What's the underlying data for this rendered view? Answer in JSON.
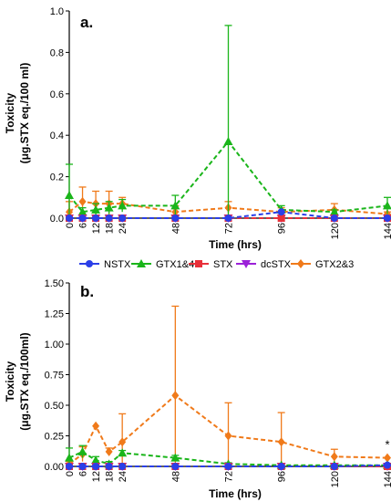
{
  "colors": {
    "NSTX": "#2b3fe8",
    "GTX1&4": "#1ab51a",
    "STX": "#e8303a",
    "dcSTX": "#9b21d8",
    "GTX2&3": "#f07a1a"
  },
  "legend": {
    "position": "between-panels",
    "items": [
      {
        "name": "NSTX",
        "marker": "circle"
      },
      {
        "name": "GTX1&4",
        "marker": "triangle-up"
      },
      {
        "name": "STX",
        "marker": "square"
      },
      {
        "name": "dcSTX",
        "marker": "triangle-down"
      },
      {
        "name": "GTX2&3",
        "marker": "diamond"
      }
    ]
  },
  "chart_data": [
    {
      "type": "line",
      "panel_label": "a.",
      "xlabel": "Time (hrs)",
      "ylabel_line1": "Toxicity",
      "ylabel_line2": "(μg.STX eq./100 ml)",
      "x": [
        0,
        6,
        12,
        18,
        24,
        48,
        72,
        96,
        120,
        144
      ],
      "x_ticks": [
        "0",
        "6",
        "12",
        "18",
        "24",
        "48",
        "72",
        "96",
        "120",
        "144"
      ],
      "ylim": [
        0,
        1.0
      ],
      "y_ticks": [
        "0.0",
        "0.2",
        "0.4",
        "0.6",
        "0.8",
        "1.0"
      ],
      "y_tick_values": [
        0,
        0.2,
        0.4,
        0.6,
        0.8,
        1.0
      ],
      "grid": false,
      "series": [
        {
          "name": "NSTX",
          "values": [
            0.0,
            0.0,
            0.0,
            0.0,
            0.0,
            0.0,
            0.0,
            0.03,
            0.0,
            0.0
          ],
          "errors": [
            0.0,
            0.0,
            0.0,
            0.0,
            0.0,
            0.0,
            0.0,
            0.0,
            0.0,
            0.0
          ]
        },
        {
          "name": "GTX1&4",
          "values": [
            0.11,
            0.03,
            0.04,
            0.05,
            0.06,
            0.06,
            0.37,
            0.04,
            0.03,
            0.06
          ],
          "errors": [
            0.15,
            0.02,
            0.03,
            0.03,
            0.03,
            0.05,
            0.56,
            0.02,
            0.01,
            0.04
          ]
        },
        {
          "name": "STX",
          "values": [
            0.0,
            0.0,
            0.0,
            0.0,
            0.0,
            0.0,
            0.0,
            0.0,
            0.0,
            0.0
          ],
          "errors": [
            0.0,
            0.0,
            0.0,
            0.0,
            0.0,
            0.0,
            0.0,
            0.0,
            0.0,
            0.0
          ]
        },
        {
          "name": "dcSTX",
          "values": [
            0.0,
            0.0,
            0.0,
            0.0,
            0.0,
            0.0,
            0.0,
            0.0,
            0.0,
            0.0
          ],
          "errors": [
            0.0,
            0.0,
            0.0,
            0.0,
            0.0,
            0.0,
            0.0,
            0.0,
            0.0,
            0.0
          ]
        },
        {
          "name": "GTX2&3",
          "values": [
            0.03,
            0.08,
            0.07,
            0.07,
            0.07,
            0.03,
            0.05,
            0.03,
            0.04,
            0.02
          ],
          "errors": [
            0.05,
            0.07,
            0.06,
            0.06,
            0.03,
            0.03,
            0.03,
            0.02,
            0.03,
            0.01
          ]
        }
      ]
    },
    {
      "type": "line",
      "panel_label": "b.",
      "xlabel": "Time (hrs)",
      "ylabel_line1": "Toxicity",
      "ylabel_line2": "(μg.STX eq./100ml)",
      "x": [
        0,
        6,
        12,
        18,
        24,
        48,
        72,
        96,
        120,
        144
      ],
      "x_ticks": [
        "0",
        "6",
        "12",
        "18",
        "24",
        "48",
        "72",
        "96",
        "120",
        "144"
      ],
      "ylim": [
        0,
        1.5
      ],
      "y_ticks": [
        "0.00",
        "0.25",
        "0.50",
        "0.75",
        "1.00",
        "1.25",
        "1.50"
      ],
      "y_tick_values": [
        0,
        0.25,
        0.5,
        0.75,
        1.0,
        1.25,
        1.5
      ],
      "grid": false,
      "annotation": {
        "text": "*",
        "x": 144
      },
      "series": [
        {
          "name": "NSTX",
          "values": [
            0.0,
            0.0,
            0.0,
            0.0,
            0.0,
            0.0,
            0.0,
            0.0,
            0.0,
            0.01
          ],
          "errors": [
            0.0,
            0.0,
            0.0,
            0.0,
            0.0,
            0.0,
            0.0,
            0.0,
            0.0,
            0.0
          ]
        },
        {
          "name": "GTX1&4",
          "values": [
            0.07,
            0.12,
            0.05,
            0.02,
            0.11,
            0.07,
            0.02,
            0.01,
            0.01,
            0.01
          ],
          "errors": [
            0.08,
            0.05,
            0.03,
            0.02,
            0.02,
            0.02,
            0.01,
            0.0,
            0.0,
            0.0
          ]
        },
        {
          "name": "STX",
          "values": [
            0.0,
            0.0,
            0.0,
            0.0,
            0.0,
            0.0,
            0.0,
            0.0,
            0.0,
            0.0
          ],
          "errors": [
            0.0,
            0.0,
            0.0,
            0.0,
            0.0,
            0.0,
            0.0,
            0.0,
            0.0,
            0.0
          ]
        },
        {
          "name": "dcSTX",
          "values": [
            0.0,
            0.0,
            0.0,
            0.0,
            0.0,
            0.0,
            0.0,
            0.0,
            0.0,
            0.0
          ],
          "errors": [
            0.0,
            0.0,
            0.0,
            0.0,
            0.0,
            0.0,
            0.0,
            0.0,
            0.0,
            0.0
          ]
        },
        {
          "name": "GTX2&3",
          "values": [
            0.02,
            0.1,
            0.33,
            0.12,
            0.2,
            0.58,
            0.25,
            0.2,
            0.08,
            0.07
          ],
          "errors": [
            0.02,
            0.06,
            0.0,
            0.03,
            0.23,
            0.73,
            0.27,
            0.24,
            0.06,
            0.0
          ]
        }
      ]
    }
  ]
}
